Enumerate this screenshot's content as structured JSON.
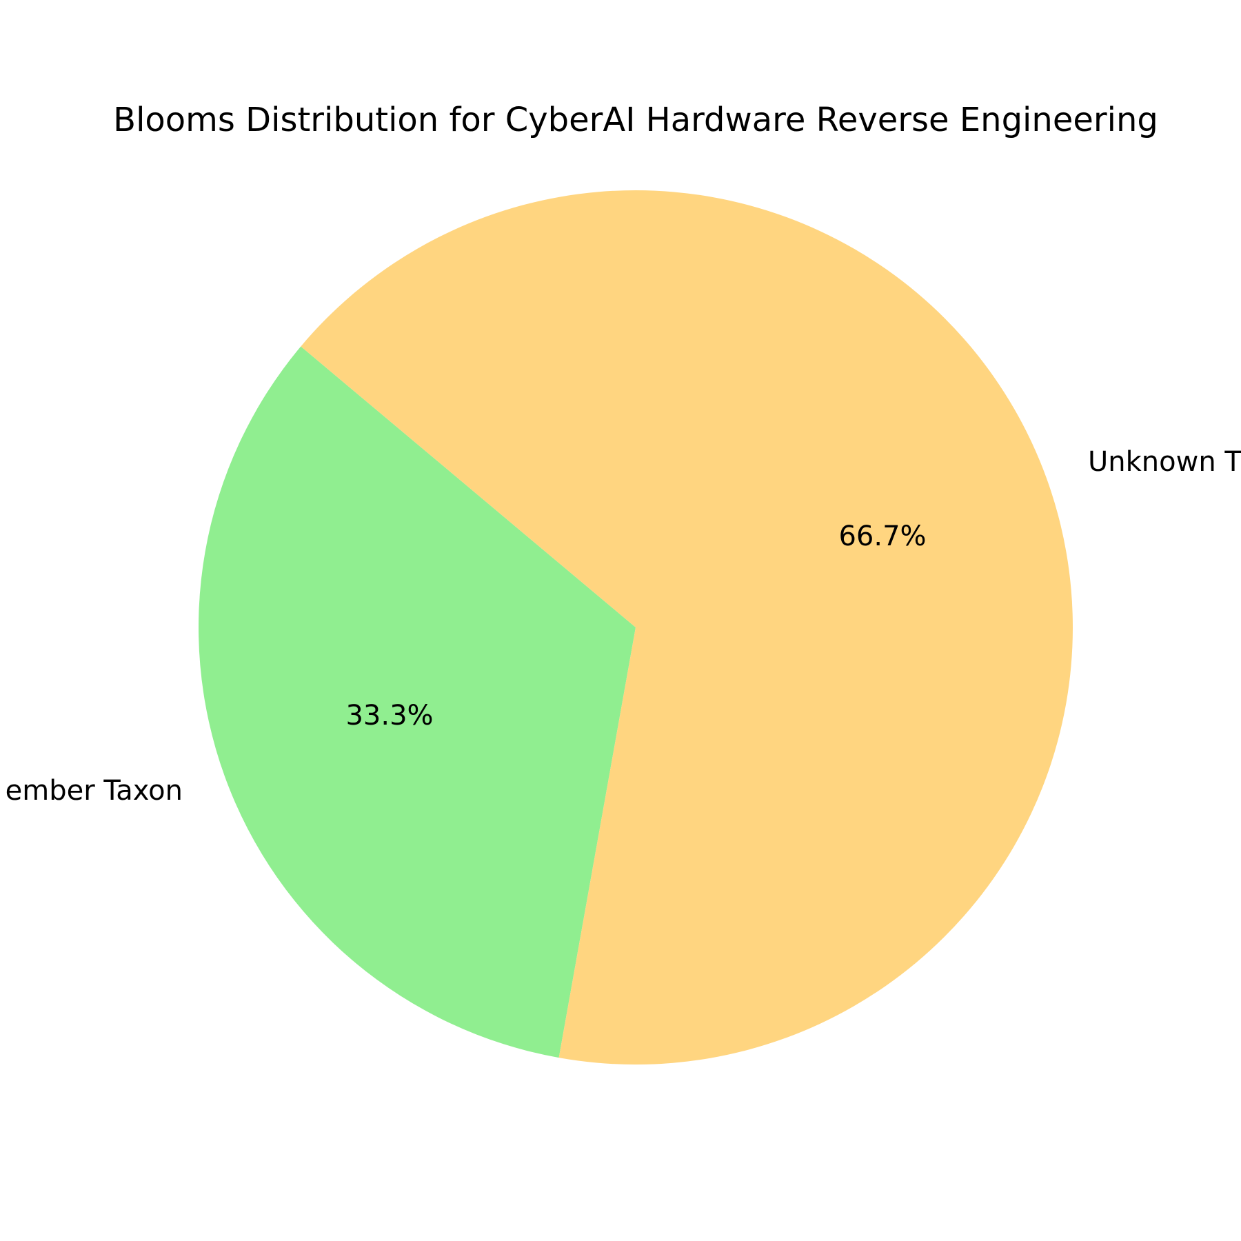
{
  "chart_data": {
    "type": "pie",
    "title": "Blooms Distribution for CyberAI Hardware Reverse Engineering",
    "slices": [
      {
        "label": "Unknown T",
        "value": 66.7,
        "pct_label": "66.7%",
        "color": "#FFD580"
      },
      {
        "label": "ember Taxon",
        "value": 33.3,
        "pct_label": "33.3%",
        "color": "#90EE90"
      }
    ],
    "legend": false
  }
}
